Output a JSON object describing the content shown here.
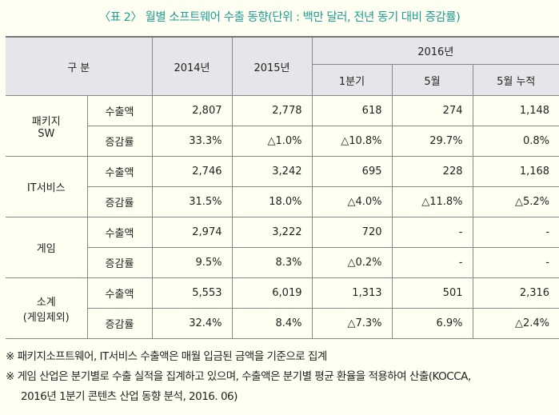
{
  "title": "〈표 2〉 월별 소프트웨어 수출 동향(단위 : 백만 달러, 전년 동기 대비 증감률)",
  "header": {
    "category": "구 분",
    "y2014": "2014년",
    "y2015": "2015년",
    "y2016": "2016년",
    "q1": "1분기",
    "may": "5월",
    "may_cum": "5월 누적"
  },
  "groups": [
    {
      "name": "패키지\nSW",
      "rows": [
        {
          "label": "수출액",
          "values": [
            "2,807",
            "2,778",
            "618",
            "274",
            "1,148"
          ]
        },
        {
          "label": "증감률",
          "values": [
            "33.3%",
            "△1.0%",
            "△10.8%",
            "29.7%",
            "0.8%"
          ]
        }
      ]
    },
    {
      "name": "IT서비스",
      "rows": [
        {
          "label": "수출액",
          "values": [
            "2,746",
            "3,242",
            "695",
            "228",
            "1,168"
          ]
        },
        {
          "label": "증감률",
          "values": [
            "31.5%",
            "18.0%",
            "△4.0%",
            "△11.8%",
            "△5.2%"
          ]
        }
      ]
    },
    {
      "name": "게임",
      "rows": [
        {
          "label": "수출액",
          "values": [
            "2,974",
            "3,222",
            "720",
            "-",
            "-"
          ]
        },
        {
          "label": "증감률",
          "values": [
            "9.5%",
            "8.3%",
            "△0.2%",
            "-",
            "-"
          ]
        }
      ]
    },
    {
      "name": "소계\n(게임제외)",
      "rows": [
        {
          "label": "수출액",
          "values": [
            "5,553",
            "6,019",
            "1,313",
            "501",
            "2,316"
          ]
        },
        {
          "label": "증감률",
          "values": [
            "32.4%",
            "8.4%",
            "△7.3%",
            "6.9%",
            "△2.4%"
          ]
        }
      ]
    }
  ],
  "notes": [
    "※ 패키지소프트웨어, IT서비스 수출액은 매월 입금된 금액을 기준으로 집계",
    "※ 게임 산업은 분기별로 수출 실적을 집계하고 있으며, 수출액은 분기별 평균 환율을 적용하여 산출(KOCCA,",
    "2016년 1분기 콘텐츠 산업 동향 분석, 2016. 06)"
  ]
}
